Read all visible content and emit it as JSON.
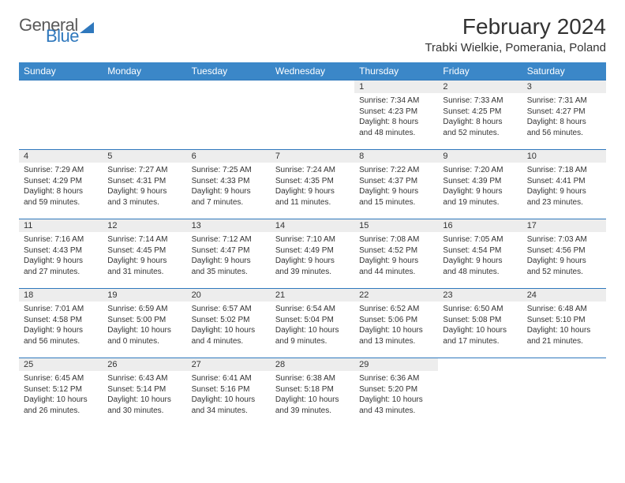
{
  "logo": {
    "text1": "General",
    "text2": "Blue"
  },
  "title": "February 2024",
  "location": "Trabki Wielkie, Pomerania, Poland",
  "colors": {
    "header_bg": "#3b87c8",
    "header_text": "#ffffff",
    "border": "#2f78bd",
    "daynum_bg": "#ededed",
    "text": "#333333",
    "logo_gray": "#5a5a5a",
    "logo_blue": "#2f78bd",
    "page_bg": "#ffffff"
  },
  "typography": {
    "title_fontsize": 28,
    "location_fontsize": 15,
    "dayheader_fontsize": 12,
    "daynum_fontsize": 11,
    "body_fontsize": 10
  },
  "day_headers": [
    "Sunday",
    "Monday",
    "Tuesday",
    "Wednesday",
    "Thursday",
    "Friday",
    "Saturday"
  ],
  "weeks": [
    [
      null,
      null,
      null,
      null,
      {
        "n": "1",
        "sunrise": "Sunrise: 7:34 AM",
        "sunset": "Sunset: 4:23 PM",
        "daylight": "Daylight: 8 hours and 48 minutes."
      },
      {
        "n": "2",
        "sunrise": "Sunrise: 7:33 AM",
        "sunset": "Sunset: 4:25 PM",
        "daylight": "Daylight: 8 hours and 52 minutes."
      },
      {
        "n": "3",
        "sunrise": "Sunrise: 7:31 AM",
        "sunset": "Sunset: 4:27 PM",
        "daylight": "Daylight: 8 hours and 56 minutes."
      }
    ],
    [
      {
        "n": "4",
        "sunrise": "Sunrise: 7:29 AM",
        "sunset": "Sunset: 4:29 PM",
        "daylight": "Daylight: 8 hours and 59 minutes."
      },
      {
        "n": "5",
        "sunrise": "Sunrise: 7:27 AM",
        "sunset": "Sunset: 4:31 PM",
        "daylight": "Daylight: 9 hours and 3 minutes."
      },
      {
        "n": "6",
        "sunrise": "Sunrise: 7:25 AM",
        "sunset": "Sunset: 4:33 PM",
        "daylight": "Daylight: 9 hours and 7 minutes."
      },
      {
        "n": "7",
        "sunrise": "Sunrise: 7:24 AM",
        "sunset": "Sunset: 4:35 PM",
        "daylight": "Daylight: 9 hours and 11 minutes."
      },
      {
        "n": "8",
        "sunrise": "Sunrise: 7:22 AM",
        "sunset": "Sunset: 4:37 PM",
        "daylight": "Daylight: 9 hours and 15 minutes."
      },
      {
        "n": "9",
        "sunrise": "Sunrise: 7:20 AM",
        "sunset": "Sunset: 4:39 PM",
        "daylight": "Daylight: 9 hours and 19 minutes."
      },
      {
        "n": "10",
        "sunrise": "Sunrise: 7:18 AM",
        "sunset": "Sunset: 4:41 PM",
        "daylight": "Daylight: 9 hours and 23 minutes."
      }
    ],
    [
      {
        "n": "11",
        "sunrise": "Sunrise: 7:16 AM",
        "sunset": "Sunset: 4:43 PM",
        "daylight": "Daylight: 9 hours and 27 minutes."
      },
      {
        "n": "12",
        "sunrise": "Sunrise: 7:14 AM",
        "sunset": "Sunset: 4:45 PM",
        "daylight": "Daylight: 9 hours and 31 minutes."
      },
      {
        "n": "13",
        "sunrise": "Sunrise: 7:12 AM",
        "sunset": "Sunset: 4:47 PM",
        "daylight": "Daylight: 9 hours and 35 minutes."
      },
      {
        "n": "14",
        "sunrise": "Sunrise: 7:10 AM",
        "sunset": "Sunset: 4:49 PM",
        "daylight": "Daylight: 9 hours and 39 minutes."
      },
      {
        "n": "15",
        "sunrise": "Sunrise: 7:08 AM",
        "sunset": "Sunset: 4:52 PM",
        "daylight": "Daylight: 9 hours and 44 minutes."
      },
      {
        "n": "16",
        "sunrise": "Sunrise: 7:05 AM",
        "sunset": "Sunset: 4:54 PM",
        "daylight": "Daylight: 9 hours and 48 minutes."
      },
      {
        "n": "17",
        "sunrise": "Sunrise: 7:03 AM",
        "sunset": "Sunset: 4:56 PM",
        "daylight": "Daylight: 9 hours and 52 minutes."
      }
    ],
    [
      {
        "n": "18",
        "sunrise": "Sunrise: 7:01 AM",
        "sunset": "Sunset: 4:58 PM",
        "daylight": "Daylight: 9 hours and 56 minutes."
      },
      {
        "n": "19",
        "sunrise": "Sunrise: 6:59 AM",
        "sunset": "Sunset: 5:00 PM",
        "daylight": "Daylight: 10 hours and 0 minutes."
      },
      {
        "n": "20",
        "sunrise": "Sunrise: 6:57 AM",
        "sunset": "Sunset: 5:02 PM",
        "daylight": "Daylight: 10 hours and 4 minutes."
      },
      {
        "n": "21",
        "sunrise": "Sunrise: 6:54 AM",
        "sunset": "Sunset: 5:04 PM",
        "daylight": "Daylight: 10 hours and 9 minutes."
      },
      {
        "n": "22",
        "sunrise": "Sunrise: 6:52 AM",
        "sunset": "Sunset: 5:06 PM",
        "daylight": "Daylight: 10 hours and 13 minutes."
      },
      {
        "n": "23",
        "sunrise": "Sunrise: 6:50 AM",
        "sunset": "Sunset: 5:08 PM",
        "daylight": "Daylight: 10 hours and 17 minutes."
      },
      {
        "n": "24",
        "sunrise": "Sunrise: 6:48 AM",
        "sunset": "Sunset: 5:10 PM",
        "daylight": "Daylight: 10 hours and 21 minutes."
      }
    ],
    [
      {
        "n": "25",
        "sunrise": "Sunrise: 6:45 AM",
        "sunset": "Sunset: 5:12 PM",
        "daylight": "Daylight: 10 hours and 26 minutes."
      },
      {
        "n": "26",
        "sunrise": "Sunrise: 6:43 AM",
        "sunset": "Sunset: 5:14 PM",
        "daylight": "Daylight: 10 hours and 30 minutes."
      },
      {
        "n": "27",
        "sunrise": "Sunrise: 6:41 AM",
        "sunset": "Sunset: 5:16 PM",
        "daylight": "Daylight: 10 hours and 34 minutes."
      },
      {
        "n": "28",
        "sunrise": "Sunrise: 6:38 AM",
        "sunset": "Sunset: 5:18 PM",
        "daylight": "Daylight: 10 hours and 39 minutes."
      },
      {
        "n": "29",
        "sunrise": "Sunrise: 6:36 AM",
        "sunset": "Sunset: 5:20 PM",
        "daylight": "Daylight: 10 hours and 43 minutes."
      },
      null,
      null
    ]
  ]
}
